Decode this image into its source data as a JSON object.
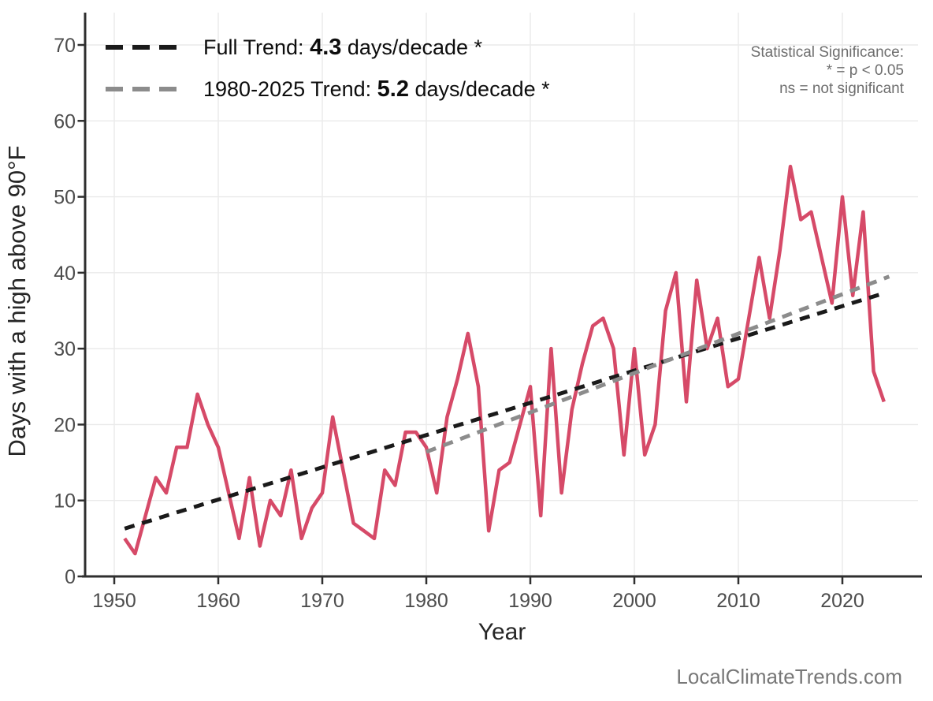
{
  "chart_data": {
    "type": "line",
    "title": "",
    "xlabel": "Year",
    "ylabel": "Days with a high above 90°F",
    "x_ticks": [
      1950,
      1960,
      1970,
      1980,
      1990,
      2000,
      2010,
      2020
    ],
    "y_ticks": [
      0,
      10,
      20,
      30,
      40,
      50,
      60,
      70
    ],
    "xlim": [
      1947.2,
      2027.3
    ],
    "ylim": [
      0,
      74.2
    ],
    "grid": "major-only",
    "legend_position": "top-left-inside",
    "series": [
      {
        "name": "annual-days-above-90F",
        "color": "#d64a68",
        "year_start": 1951,
        "year_end": 2024,
        "values": [
          5,
          3,
          8,
          13,
          11,
          17,
          17,
          24,
          20,
          17,
          11,
          5,
          13,
          4,
          10,
          8,
          14,
          5,
          9,
          11,
          21,
          14,
          7,
          6,
          5,
          14,
          12,
          19,
          19,
          17,
          11,
          21,
          26,
          32,
          25,
          6,
          14,
          15,
          20,
          25,
          8,
          30,
          11,
          22,
          28,
          33,
          34,
          30,
          16,
          30,
          16,
          20,
          35,
          40,
          23,
          39,
          30,
          34,
          25,
          26,
          34,
          42,
          34,
          43,
          54,
          47,
          48,
          42,
          36,
          50,
          37,
          48,
          27,
          23
        ]
      }
    ],
    "trends": [
      {
        "name": "full-trend",
        "label_prefix": "Full Trend: ",
        "value": "4.3",
        "label_suffix": " days/decade *",
        "color": "#1a1a1a",
        "x": [
          1951,
          2024
        ],
        "y": [
          6.3,
          37.3
        ]
      },
      {
        "name": "recent-trend",
        "label_prefix": "1980-2025 Trend: ",
        "value": "5.2",
        "label_suffix": " days/decade *",
        "color": "#8c8c8c",
        "x": [
          1980,
          2024.5
        ],
        "y": [
          16.4,
          39.5
        ]
      }
    ],
    "annotation": {
      "lines": [
        "Statistical Significance:",
        "* = p < 0.05",
        "ns = not significant"
      ]
    },
    "watermark": "LocalClimateTrends.com",
    "style": {
      "grid_color": "#eaeaea",
      "axis_color": "#2f2f2f",
      "tick_label_color": "#4d4d4d",
      "axis_title_color": "#262626",
      "background": "#ffffff"
    }
  }
}
